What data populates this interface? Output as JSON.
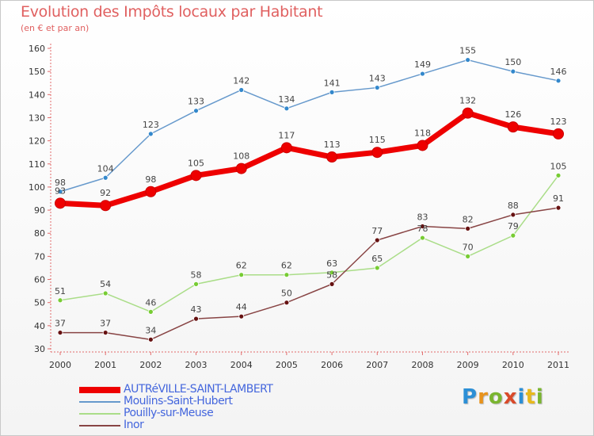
{
  "header": {
    "title": "Evolution des Impôts locaux par Habitant",
    "subtitle": "(en € et par an)"
  },
  "logo": {
    "text": "Proxiti",
    "letters": [
      "P",
      "r",
      "o",
      "x",
      "i",
      "t",
      "i"
    ]
  },
  "chart_data": {
    "type": "line",
    "x": [
      "2000",
      "2001",
      "2002",
      "2003",
      "2004",
      "2005",
      "2006",
      "2007",
      "2008",
      "2009",
      "2010",
      "2011"
    ],
    "ylim": [
      30,
      160
    ],
    "yticks": [
      30,
      40,
      50,
      60,
      70,
      80,
      90,
      100,
      110,
      120,
      130,
      140,
      150,
      160
    ],
    "grid": false,
    "legend_position": "bottom-left",
    "series": [
      {
        "name": "Moulins-Saint-Hubert",
        "color": "#6699cc",
        "marker": "#3388cc",
        "values": [
          98,
          104,
          123,
          133,
          142,
          134,
          141,
          143,
          149,
          155,
          150,
          146
        ]
      },
      {
        "name": "Pouilly-sur-Meuse",
        "color": "#aadd88",
        "marker": "#77cc33",
        "values": [
          51,
          54,
          46,
          58,
          62,
          62,
          63,
          65,
          78,
          70,
          79,
          105
        ]
      },
      {
        "name": "Inor",
        "color": "#884444",
        "marker": "#661111",
        "values": [
          37,
          37,
          34,
          43,
          44,
          50,
          58,
          77,
          83,
          82,
          88,
          91
        ]
      },
      {
        "name": "AUTRéVILLE-SAINT-LAMBERT",
        "color": "#ee0000",
        "marker": "#ee0000",
        "values": [
          93,
          92,
          98,
          105,
          108,
          117,
          113,
          115,
          118,
          132,
          126,
          123
        ]
      }
    ]
  }
}
